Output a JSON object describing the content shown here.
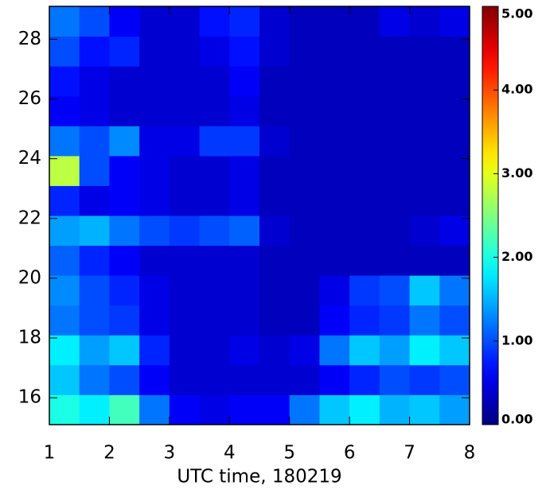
{
  "chart_data": {
    "type": "heatmap",
    "x_label": "UTC time, 180219",
    "x": [
      1.25,
      1.75,
      2.25,
      2.75,
      3.25,
      3.75,
      4.25,
      4.75,
      5.25,
      5.75,
      6.25,
      6.75,
      7.25,
      7.75
    ],
    "y": [
      15.6,
      16.6,
      17.6,
      18.6,
      19.6,
      20.6,
      21.6,
      22.6,
      23.6,
      24.6,
      25.6,
      26.6,
      27.6,
      28.6
    ],
    "z": [
      [
        2.0,
        1.8,
        2.2,
        1.2,
        0.6,
        0.5,
        0.6,
        0.6,
        1.2,
        1.6,
        1.8,
        1.5,
        1.6,
        1.4
      ],
      [
        1.6,
        1.2,
        1.0,
        0.6,
        0.4,
        0.4,
        0.4,
        0.4,
        0.4,
        0.6,
        0.8,
        1.0,
        0.9,
        1.0
      ],
      [
        1.8,
        1.4,
        1.6,
        0.8,
        0.4,
        0.4,
        0.5,
        0.4,
        0.5,
        1.2,
        1.6,
        1.4,
        1.8,
        1.6
      ],
      [
        1.2,
        1.0,
        0.9,
        0.5,
        0.4,
        0.4,
        0.4,
        0.3,
        0.3,
        0.6,
        0.8,
        0.9,
        1.2,
        1.0
      ],
      [
        1.3,
        1.0,
        0.8,
        0.5,
        0.4,
        0.4,
        0.4,
        0.3,
        0.3,
        0.5,
        0.9,
        1.0,
        1.6,
        1.2
      ],
      [
        1.1,
        0.8,
        0.6,
        0.4,
        0.4,
        0.4,
        0.4,
        0.3,
        0.3,
        0.3,
        0.3,
        0.3,
        0.3,
        0.3
      ],
      [
        1.4,
        1.5,
        1.2,
        1.0,
        0.9,
        1.0,
        1.1,
        0.4,
        0.3,
        0.3,
        0.3,
        0.3,
        0.4,
        0.5
      ],
      [
        0.8,
        0.5,
        0.6,
        0.5,
        0.4,
        0.4,
        0.5,
        0.3,
        0.3,
        0.3,
        0.3,
        0.3,
        0.3,
        0.3
      ],
      [
        2.8,
        1.0,
        0.6,
        0.5,
        0.4,
        0.4,
        0.5,
        0.3,
        0.3,
        0.3,
        0.3,
        0.3,
        0.3,
        0.3
      ],
      [
        1.2,
        1.0,
        1.3,
        0.5,
        0.5,
        0.9,
        0.9,
        0.4,
        0.3,
        0.3,
        0.3,
        0.3,
        0.3,
        0.3
      ],
      [
        0.6,
        0.5,
        0.4,
        0.4,
        0.4,
        0.4,
        0.5,
        0.3,
        0.3,
        0.3,
        0.3,
        0.3,
        0.3,
        0.3
      ],
      [
        0.7,
        0.5,
        0.4,
        0.4,
        0.4,
        0.4,
        0.6,
        0.3,
        0.3,
        0.3,
        0.3,
        0.3,
        0.3,
        0.3
      ],
      [
        1.0,
        0.7,
        0.8,
        0.4,
        0.4,
        0.5,
        0.7,
        0.4,
        0.3,
        0.3,
        0.3,
        0.3,
        0.3,
        0.3
      ],
      [
        1.2,
        1.0,
        0.6,
        0.4,
        0.4,
        0.7,
        0.8,
        0.4,
        0.3,
        0.3,
        0.3,
        0.5,
        0.4,
        0.5
      ]
    ],
    "xlim": [
      1,
      8
    ],
    "xticks": [
      1,
      2,
      3,
      4,
      5,
      6,
      7,
      8
    ],
    "ylim": [
      15.1,
      29.1
    ],
    "yticks": [
      16,
      18,
      20,
      22,
      24,
      26,
      28
    ],
    "clim": [
      0,
      5
    ],
    "cticks": [
      {
        "value": 0,
        "label": "0.00"
      },
      {
        "value": 1,
        "label": "1.00"
      },
      {
        "value": 2,
        "label": "2.00"
      },
      {
        "value": 3,
        "label": "3.00"
      },
      {
        "value": 4,
        "label": "4.00"
      },
      {
        "value": 5,
        "label": "5.00"
      }
    ],
    "colormap": "jet"
  }
}
